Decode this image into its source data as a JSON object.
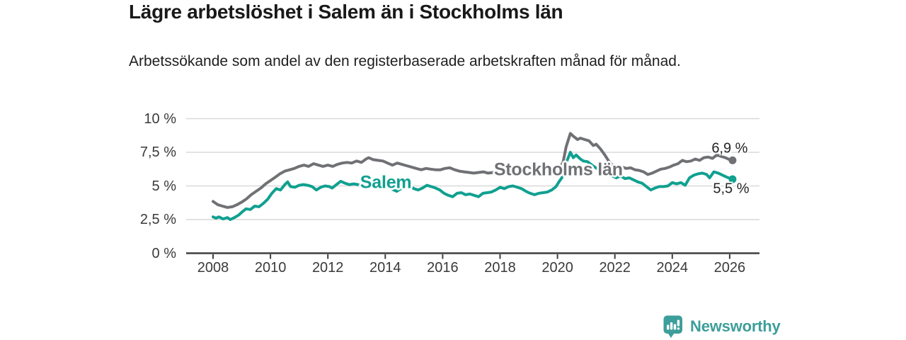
{
  "header": {
    "title": "Lägre arbetslöshet i Salem än i Stockholms län",
    "subtitle": "Arbetssökande som andel av den registerbaserade arbetskraften månad för månad."
  },
  "chart_data": {
    "type": "line",
    "title": "Lägre arbetslöshet i Salem än i Stockholms län",
    "subtitle": "Arbetssökande som andel av den registerbaserade arbetskraften månad för månad.",
    "xlim": [
      2007.05,
      2027.0
    ],
    "ylim": [
      0,
      10
    ],
    "grid": "horizontal",
    "legend_position": "inline-on-lines",
    "axis_color": "#3f3f3f",
    "grid_color": "#d9d9d9",
    "x_ticks": [
      {
        "v": 2008,
        "label": "2008"
      },
      {
        "v": 2010,
        "label": "2010"
      },
      {
        "v": 2012,
        "label": "2012"
      },
      {
        "v": 2014,
        "label": "2014"
      },
      {
        "v": 2016,
        "label": "2016"
      },
      {
        "v": 2018,
        "label": "2018"
      },
      {
        "v": 2020,
        "label": "2020"
      },
      {
        "v": 2022,
        "label": "2022"
      },
      {
        "v": 2024,
        "label": "2024"
      },
      {
        "v": 2026,
        "label": "2026"
      }
    ],
    "y_ticks": [
      {
        "v": 0,
        "label": "0 %"
      },
      {
        "v": 2.5,
        "label": "2,5 %"
      },
      {
        "v": 5,
        "label": "5 %"
      },
      {
        "v": 7.5,
        "label": "7,5 %"
      },
      {
        "v": 10,
        "label": "10 %"
      }
    ],
    "series": [
      {
        "name": "Stockholms län",
        "color": "#707174",
        "inline_label": {
          "text": "Stockholms län",
          "x": 2020.03,
          "y": 6.18
        },
        "end_label": {
          "text": "6,9 %",
          "x": 2026.0,
          "y": 7.74
        },
        "end_value": 6.9,
        "points": [
          [
            2008.0,
            3.85
          ],
          [
            2008.17,
            3.6
          ],
          [
            2008.33,
            3.5
          ],
          [
            2008.5,
            3.4
          ],
          [
            2008.67,
            3.45
          ],
          [
            2008.83,
            3.6
          ],
          [
            2009.0,
            3.8
          ],
          [
            2009.17,
            4.05
          ],
          [
            2009.33,
            4.35
          ],
          [
            2009.5,
            4.6
          ],
          [
            2009.67,
            4.85
          ],
          [
            2009.83,
            5.15
          ],
          [
            2010.0,
            5.4
          ],
          [
            2010.17,
            5.65
          ],
          [
            2010.33,
            5.9
          ],
          [
            2010.5,
            6.1
          ],
          [
            2010.67,
            6.2
          ],
          [
            2010.83,
            6.3
          ],
          [
            2011.0,
            6.45
          ],
          [
            2011.17,
            6.55
          ],
          [
            2011.33,
            6.45
          ],
          [
            2011.5,
            6.65
          ],
          [
            2011.67,
            6.55
          ],
          [
            2011.83,
            6.45
          ],
          [
            2012.0,
            6.55
          ],
          [
            2012.17,
            6.45
          ],
          [
            2012.33,
            6.6
          ],
          [
            2012.5,
            6.7
          ],
          [
            2012.67,
            6.75
          ],
          [
            2012.83,
            6.7
          ],
          [
            2013.0,
            6.85
          ],
          [
            2013.17,
            6.75
          ],
          [
            2013.33,
            7.0
          ],
          [
            2013.42,
            7.1
          ],
          [
            2013.58,
            6.95
          ],
          [
            2013.75,
            6.9
          ],
          [
            2013.92,
            6.85
          ],
          [
            2014.08,
            6.7
          ],
          [
            2014.25,
            6.55
          ],
          [
            2014.42,
            6.7
          ],
          [
            2014.58,
            6.6
          ],
          [
            2014.75,
            6.5
          ],
          [
            2014.92,
            6.4
          ],
          [
            2015.08,
            6.3
          ],
          [
            2015.25,
            6.2
          ],
          [
            2015.42,
            6.3
          ],
          [
            2015.58,
            6.25
          ],
          [
            2015.75,
            6.2
          ],
          [
            2015.92,
            6.2
          ],
          [
            2016.08,
            6.3
          ],
          [
            2016.25,
            6.35
          ],
          [
            2016.42,
            6.2
          ],
          [
            2016.58,
            6.1
          ],
          [
            2016.75,
            6.05
          ],
          [
            2016.92,
            6.0
          ],
          [
            2017.08,
            5.95
          ],
          [
            2017.25,
            6.0
          ],
          [
            2017.42,
            6.05
          ],
          [
            2017.58,
            5.95
          ],
          [
            2017.75,
            6.0
          ],
          [
            2017.92,
            6.05
          ],
          [
            2018.08,
            5.95
          ],
          [
            2018.25,
            6.0
          ],
          [
            2018.42,
            5.9
          ],
          [
            2018.58,
            5.95
          ],
          [
            2018.75,
            5.9
          ],
          [
            2018.92,
            5.95
          ],
          [
            2019.08,
            5.9
          ],
          [
            2019.25,
            5.95
          ],
          [
            2019.42,
            6.0
          ],
          [
            2019.58,
            6.05
          ],
          [
            2019.75,
            6.1
          ],
          [
            2019.92,
            6.15
          ],
          [
            2020.08,
            6.3
          ],
          [
            2020.2,
            6.8
          ],
          [
            2020.3,
            7.9
          ],
          [
            2020.45,
            8.9
          ],
          [
            2020.55,
            8.7
          ],
          [
            2020.7,
            8.45
          ],
          [
            2020.8,
            8.55
          ],
          [
            2020.95,
            8.45
          ],
          [
            2021.1,
            8.35
          ],
          [
            2021.25,
            8.0
          ],
          [
            2021.35,
            8.1
          ],
          [
            2021.5,
            7.75
          ],
          [
            2021.65,
            7.3
          ],
          [
            2021.8,
            6.8
          ],
          [
            2021.95,
            6.45
          ],
          [
            2022.1,
            6.35
          ],
          [
            2022.25,
            6.4
          ],
          [
            2022.4,
            6.3
          ],
          [
            2022.55,
            6.35
          ],
          [
            2022.7,
            6.2
          ],
          [
            2022.85,
            6.15
          ],
          [
            2023.0,
            6.05
          ],
          [
            2023.15,
            5.85
          ],
          [
            2023.3,
            5.95
          ],
          [
            2023.45,
            6.1
          ],
          [
            2023.6,
            6.25
          ],
          [
            2023.75,
            6.3
          ],
          [
            2023.9,
            6.4
          ],
          [
            2024.05,
            6.55
          ],
          [
            2024.2,
            6.65
          ],
          [
            2024.35,
            6.9
          ],
          [
            2024.5,
            6.8
          ],
          [
            2024.65,
            6.85
          ],
          [
            2024.8,
            7.0
          ],
          [
            2024.95,
            6.9
          ],
          [
            2025.1,
            7.1
          ],
          [
            2025.25,
            7.15
          ],
          [
            2025.4,
            7.05
          ],
          [
            2025.55,
            7.3
          ],
          [
            2025.7,
            7.2
          ],
          [
            2025.85,
            7.1
          ],
          [
            2026.0,
            6.95
          ],
          [
            2026.1,
            6.9
          ]
        ]
      },
      {
        "name": "Salem",
        "color": "#10a090",
        "inline_label": {
          "text": "Salem",
          "x": 2014.02,
          "y": 5.24
        },
        "end_label": {
          "text": "5,5 %",
          "x": 2026.05,
          "y": 4.75
        },
        "end_value": 5.5,
        "points": [
          [
            2008.0,
            2.7
          ],
          [
            2008.1,
            2.6
          ],
          [
            2008.2,
            2.7
          ],
          [
            2008.35,
            2.55
          ],
          [
            2008.5,
            2.65
          ],
          [
            2008.6,
            2.5
          ],
          [
            2008.75,
            2.65
          ],
          [
            2008.9,
            2.85
          ],
          [
            2009.0,
            3.05
          ],
          [
            2009.15,
            3.3
          ],
          [
            2009.3,
            3.25
          ],
          [
            2009.45,
            3.5
          ],
          [
            2009.6,
            3.45
          ],
          [
            2009.75,
            3.7
          ],
          [
            2009.9,
            4.0
          ],
          [
            2010.05,
            4.45
          ],
          [
            2010.2,
            4.8
          ],
          [
            2010.35,
            4.7
          ],
          [
            2010.5,
            5.1
          ],
          [
            2010.6,
            5.3
          ],
          [
            2010.7,
            4.95
          ],
          [
            2010.85,
            4.9
          ],
          [
            2011.0,
            5.05
          ],
          [
            2011.15,
            5.1
          ],
          [
            2011.3,
            5.05
          ],
          [
            2011.45,
            4.95
          ],
          [
            2011.6,
            4.7
          ],
          [
            2011.75,
            4.9
          ],
          [
            2011.9,
            5.0
          ],
          [
            2012.05,
            4.95
          ],
          [
            2012.15,
            4.85
          ],
          [
            2012.3,
            5.1
          ],
          [
            2012.45,
            5.35
          ],
          [
            2012.6,
            5.2
          ],
          [
            2012.75,
            5.1
          ],
          [
            2012.9,
            5.15
          ],
          [
            2013.05,
            5.1
          ],
          [
            2013.2,
            5.05
          ],
          [
            2013.35,
            5.1
          ],
          [
            2013.5,
            5.05
          ],
          [
            2013.65,
            5.1
          ],
          [
            2013.8,
            5.1
          ],
          [
            2013.95,
            5.05
          ],
          [
            2014.1,
            4.95
          ],
          [
            2014.25,
            4.75
          ],
          [
            2014.4,
            4.6
          ],
          [
            2014.55,
            4.8
          ],
          [
            2014.7,
            4.95
          ],
          [
            2014.85,
            5.0
          ],
          [
            2015.0,
            4.8
          ],
          [
            2015.15,
            4.7
          ],
          [
            2015.3,
            4.85
          ],
          [
            2015.45,
            5.05
          ],
          [
            2015.6,
            4.95
          ],
          [
            2015.75,
            4.85
          ],
          [
            2015.9,
            4.7
          ],
          [
            2016.05,
            4.45
          ],
          [
            2016.2,
            4.3
          ],
          [
            2016.35,
            4.2
          ],
          [
            2016.5,
            4.45
          ],
          [
            2016.65,
            4.5
          ],
          [
            2016.8,
            4.35
          ],
          [
            2016.95,
            4.4
          ],
          [
            2017.1,
            4.3
          ],
          [
            2017.25,
            4.2
          ],
          [
            2017.4,
            4.45
          ],
          [
            2017.55,
            4.5
          ],
          [
            2017.7,
            4.55
          ],
          [
            2017.85,
            4.7
          ],
          [
            2018.0,
            4.9
          ],
          [
            2018.15,
            4.8
          ],
          [
            2018.3,
            4.95
          ],
          [
            2018.45,
            5.0
          ],
          [
            2018.6,
            4.9
          ],
          [
            2018.75,
            4.8
          ],
          [
            2018.9,
            4.6
          ],
          [
            2019.05,
            4.45
          ],
          [
            2019.2,
            4.35
          ],
          [
            2019.35,
            4.45
          ],
          [
            2019.5,
            4.5
          ],
          [
            2019.65,
            4.55
          ],
          [
            2019.8,
            4.7
          ],
          [
            2019.95,
            4.95
          ],
          [
            2020.05,
            5.3
          ],
          [
            2020.15,
            5.6
          ],
          [
            2020.3,
            6.7
          ],
          [
            2020.45,
            7.5
          ],
          [
            2020.55,
            7.1
          ],
          [
            2020.65,
            7.3
          ],
          [
            2020.8,
            7.0
          ],
          [
            2020.9,
            6.85
          ],
          [
            2021.05,
            6.8
          ],
          [
            2021.2,
            6.55
          ],
          [
            2021.3,
            6.4
          ],
          [
            2021.45,
            6.2
          ],
          [
            2021.6,
            6.05
          ],
          [
            2021.75,
            5.9
          ],
          [
            2021.9,
            5.75
          ],
          [
            2022.05,
            5.6
          ],
          [
            2022.2,
            5.75
          ],
          [
            2022.35,
            5.55
          ],
          [
            2022.5,
            5.6
          ],
          [
            2022.65,
            5.45
          ],
          [
            2022.8,
            5.3
          ],
          [
            2022.95,
            5.2
          ],
          [
            2023.1,
            4.95
          ],
          [
            2023.25,
            4.7
          ],
          [
            2023.4,
            4.85
          ],
          [
            2023.55,
            4.95
          ],
          [
            2023.7,
            4.95
          ],
          [
            2023.85,
            5.0
          ],
          [
            2024.0,
            5.25
          ],
          [
            2024.15,
            5.15
          ],
          [
            2024.3,
            5.25
          ],
          [
            2024.45,
            5.05
          ],
          [
            2024.6,
            5.6
          ],
          [
            2024.75,
            5.8
          ],
          [
            2024.9,
            5.9
          ],
          [
            2025.05,
            5.95
          ],
          [
            2025.2,
            5.85
          ],
          [
            2025.3,
            5.6
          ],
          [
            2025.45,
            6.05
          ],
          [
            2025.6,
            5.95
          ],
          [
            2025.75,
            5.8
          ],
          [
            2025.9,
            5.65
          ],
          [
            2026.1,
            5.5
          ]
        ]
      }
    ]
  },
  "footer": {
    "brand": "Newsworthy",
    "brand_color": "#3d9e9b"
  }
}
